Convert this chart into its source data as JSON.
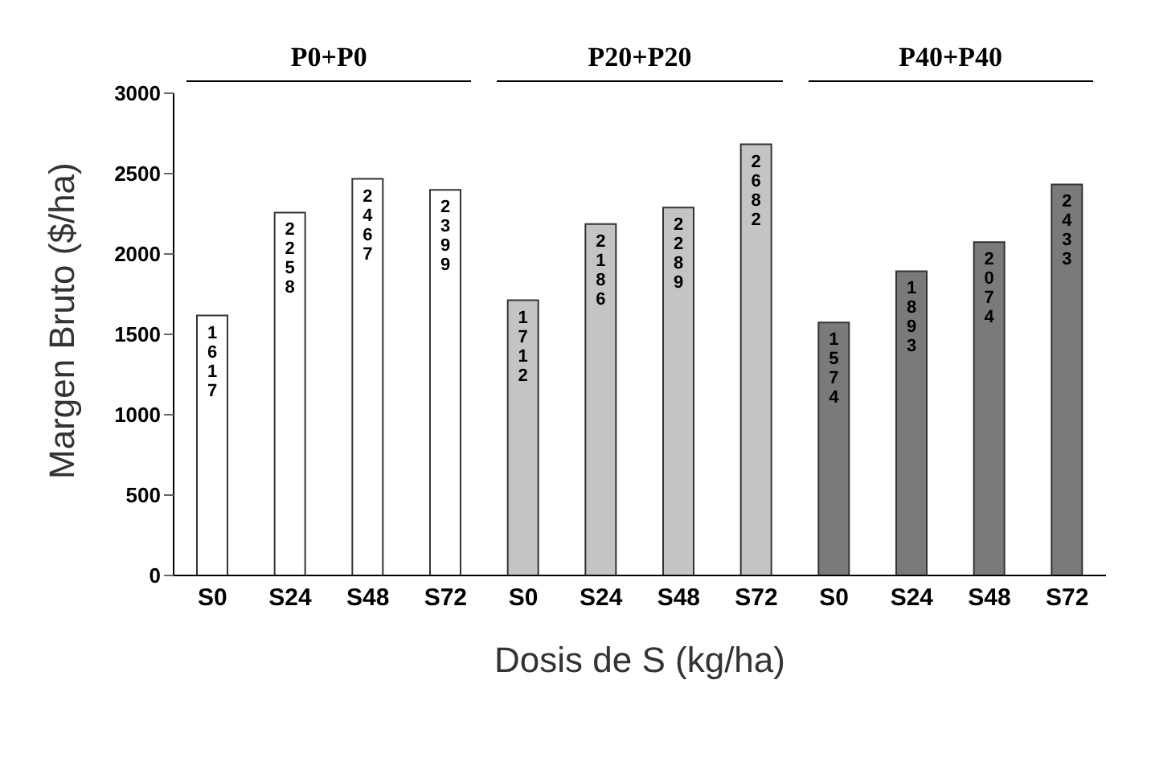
{
  "chart_data": {
    "type": "bar",
    "xlabel": "Dosis de S (kg/ha)",
    "ylabel": "Margen Bruto  ($/ha)",
    "categories": [
      "S0",
      "S24",
      "S48",
      "S72",
      "S0",
      "S24",
      "S48",
      "S72",
      "S0",
      "S24",
      "S48",
      "S72"
    ],
    "values": [
      1617,
      2258,
      2467,
      2399,
      1712,
      2186,
      2289,
      2682,
      1574,
      1893,
      2074,
      2433
    ],
    "colors": [
      "#ffffff",
      "#ffffff",
      "#ffffff",
      "#ffffff",
      "#c4c4c4",
      "#c4c4c4",
      "#c4c4c4",
      "#c4c4c4",
      "#7a7a7a",
      "#7a7a7a",
      "#7a7a7a",
      "#7a7a7a"
    ],
    "annotations": [
      "P0+P0",
      "P20+P20",
      "P40+P40"
    ],
    "ylim": [
      0,
      3000
    ],
    "yticks": [
      0,
      500,
      1000,
      1500,
      2000,
      2500,
      3000
    ],
    "grid": false,
    "data_labels": true
  }
}
